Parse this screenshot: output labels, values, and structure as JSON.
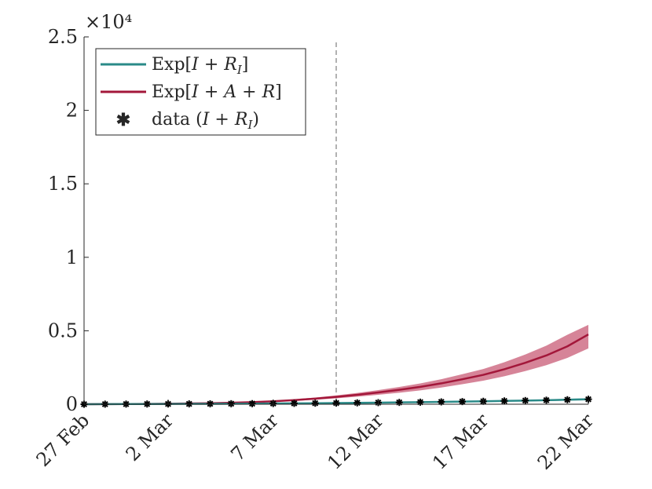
{
  "chart_data": {
    "type": "line",
    "title": "",
    "xlabel": "",
    "ylabel": "",
    "y_multiplier_label": "×10⁴",
    "xlim": [
      "27 Feb",
      "22 Mar"
    ],
    "ylim": [
      0,
      25000
    ],
    "x_ticks": [
      "27 Feb",
      "2 Mar",
      "7 Mar",
      "12 Mar",
      "17 Mar",
      "22 Mar"
    ],
    "y_ticks": [
      "0",
      "0.5",
      "1",
      "1.5",
      "2",
      "2.5"
    ],
    "y_tick_values": [
      0,
      5000,
      10000,
      15000,
      20000,
      25000
    ],
    "vertical_marker_date": "10 Mar",
    "dates": [
      "27 Feb",
      "28 Feb",
      "29 Feb",
      "1 Mar",
      "2 Mar",
      "3 Mar",
      "4 Mar",
      "5 Mar",
      "6 Mar",
      "7 Mar",
      "8 Mar",
      "9 Mar",
      "10 Mar",
      "11 Mar",
      "12 Mar",
      "13 Mar",
      "14 Mar",
      "15 Mar",
      "16 Mar",
      "17 Mar",
      "18 Mar",
      "19 Mar",
      "20 Mar",
      "21 Mar",
      "22 Mar"
    ],
    "series": [
      {
        "name": "Exp[I + R_I]",
        "color": "#2a8a88",
        "band_color": "#6fb3b0",
        "values": [
          0,
          5,
          10,
          15,
          20,
          25,
          30,
          35,
          40,
          50,
          60,
          70,
          80,
          95,
          110,
          125,
          140,
          160,
          180,
          200,
          225,
          250,
          275,
          305,
          340
        ],
        "lower": [
          0,
          3,
          7,
          11,
          15,
          19,
          23,
          27,
          32,
          40,
          48,
          56,
          64,
          76,
          88,
          100,
          112,
          128,
          144,
          160,
          180,
          200,
          220,
          244,
          270
        ],
        "upper": [
          0,
          7,
          13,
          19,
          25,
          31,
          37,
          43,
          48,
          60,
          72,
          84,
          96,
          114,
          132,
          150,
          168,
          192,
          216,
          240,
          270,
          300,
          330,
          366,
          410
        ]
      },
      {
        "name": "Exp[I + A + R]",
        "color": "#a3173a",
        "band_color": "#cf6e86",
        "values": [
          0,
          5,
          10,
          20,
          35,
          50,
          70,
          100,
          140,
          200,
          280,
          380,
          500,
          640,
          800,
          980,
          1180,
          1420,
          1700,
          2000,
          2380,
          2820,
          3320,
          3940,
          4750
        ],
        "lower": [
          0,
          4,
          8,
          16,
          28,
          40,
          56,
          80,
          112,
          160,
          224,
          304,
          400,
          512,
          640,
          784,
          944,
          1136,
          1360,
          1600,
          1904,
          2256,
          2656,
          3152,
          3800
        ],
        "upper": [
          0,
          6,
          12,
          24,
          42,
          60,
          84,
          120,
          168,
          240,
          336,
          456,
          600,
          768,
          960,
          1176,
          1416,
          1704,
          2040,
          2400,
          2856,
          3384,
          3984,
          4728,
          5400
        ]
      },
      {
        "name": "data (I + R_I)",
        "color": "#000000",
        "marker": "asterisk",
        "values": [
          0,
          5,
          10,
          15,
          20,
          25,
          30,
          35,
          40,
          50,
          60,
          70,
          80,
          95,
          110,
          125,
          140,
          160,
          180,
          200,
          225,
          250,
          275,
          305,
          340
        ]
      }
    ],
    "legend": {
      "placement": "top-left",
      "items": [
        "Exp[I + R_I]",
        "Exp[I + A + R]",
        "data (I + R_I)"
      ]
    },
    "grid": false
  }
}
